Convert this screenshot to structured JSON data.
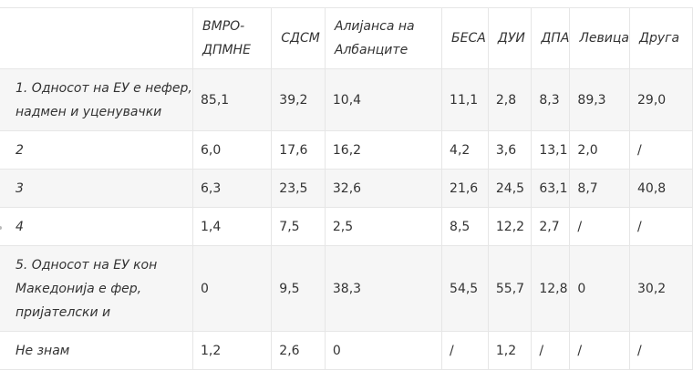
{
  "table": {
    "headers": [
      "",
      "ВМРО-ДПМНЕ",
      "СДСМ",
      "Алијанса на Албанците",
      "БЕСА",
      "ДУИ",
      "ДПА",
      "Левица",
      "Друга"
    ],
    "rows": [
      {
        "label": "1. Односот на ЕУ е нефер, надмен и уценувачки",
        "values": [
          "85,1",
          "39,2",
          "10,4",
          "11,1",
          "2,8",
          "8,3",
          "89,3",
          "29,0"
        ]
      },
      {
        "label": "2",
        "values": [
          "6,0",
          "17,6",
          "16,2",
          "4,2",
          "3,6",
          "13,1",
          "2,0",
          "/"
        ]
      },
      {
        "label": "3",
        "values": [
          "6,3",
          "23,5",
          "32,6",
          "21,6",
          "24,5",
          "63,1",
          "8,7",
          "40,8"
        ]
      },
      {
        "label": "4",
        "values": [
          "1,4",
          "7,5",
          "2,5",
          "8,5",
          "12,2",
          "2,7",
          "/",
          "/"
        ]
      },
      {
        "label": "5. Односот на ЕУ кон Македонија е фер, пријателски и",
        "values": [
          "0",
          "9,5",
          "38,3",
          "54,5",
          "55,7",
          "12,8",
          "0",
          "30,2"
        ]
      },
      {
        "label": "Не знам",
        "values": [
          "1,2",
          "2,6",
          "0",
          "/",
          "1,2",
          "/",
          "/",
          "/"
        ]
      }
    ]
  }
}
